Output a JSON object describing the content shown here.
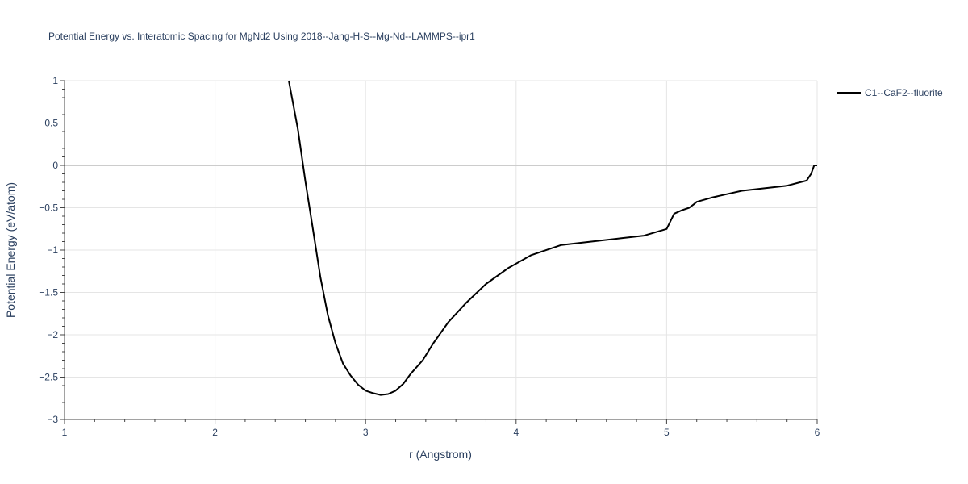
{
  "chart_data": {
    "type": "line",
    "title": "Potential Energy vs. Interatomic Spacing for MgNd2 Using 2018--Jang-H-S--Mg-Nd--LAMMPS--ipr1",
    "xlabel": "r (Angstrom)",
    "ylabel": "Potential Energy (eV/atom)",
    "xlim": [
      1,
      6
    ],
    "ylim": [
      -3,
      1
    ],
    "xticks": [
      1,
      2,
      3,
      4,
      5,
      6
    ],
    "xtick_labels": [
      "1",
      "2",
      "3",
      "4",
      "5",
      "6"
    ],
    "yticks": [
      1,
      0.5,
      0,
      -0.5,
      -1,
      -1.5,
      -2,
      -2.5,
      -3
    ],
    "ytick_labels": [
      "1",
      "0.5",
      "0",
      "−0.5",
      "−1",
      "−1.5",
      "−2",
      "−2.5",
      "−3"
    ],
    "grid": true,
    "legend_position": "top-right",
    "series": [
      {
        "name": "C1--CaF2--fluorite",
        "color": "#000000",
        "x": [
          2.49,
          2.55,
          2.6,
          2.65,
          2.7,
          2.75,
          2.8,
          2.85,
          2.9,
          2.95,
          3.0,
          3.05,
          3.1,
          3.15,
          3.2,
          3.25,
          3.3,
          3.38,
          3.45,
          3.55,
          3.67,
          3.8,
          3.95,
          4.1,
          4.3,
          4.5,
          4.7,
          4.85,
          5.0,
          5.05,
          5.1,
          5.15,
          5.18,
          5.2,
          5.3,
          5.4,
          5.5,
          5.65,
          5.8,
          5.93,
          5.96,
          5.98,
          6.0
        ],
        "y": [
          1.0,
          0.43,
          -0.19,
          -0.75,
          -1.32,
          -1.77,
          -2.1,
          -2.34,
          -2.48,
          -2.59,
          -2.66,
          -2.69,
          -2.71,
          -2.7,
          -2.66,
          -2.58,
          -2.46,
          -2.3,
          -2.1,
          -1.85,
          -1.62,
          -1.4,
          -1.21,
          -1.06,
          -0.94,
          -0.9,
          -0.86,
          -0.83,
          -0.75,
          -0.57,
          -0.53,
          -0.5,
          -0.46,
          -0.43,
          -0.38,
          -0.34,
          -0.3,
          -0.27,
          -0.24,
          -0.18,
          -0.1,
          0.0,
          0.0
        ],
        "x_sorted": true
      }
    ]
  }
}
